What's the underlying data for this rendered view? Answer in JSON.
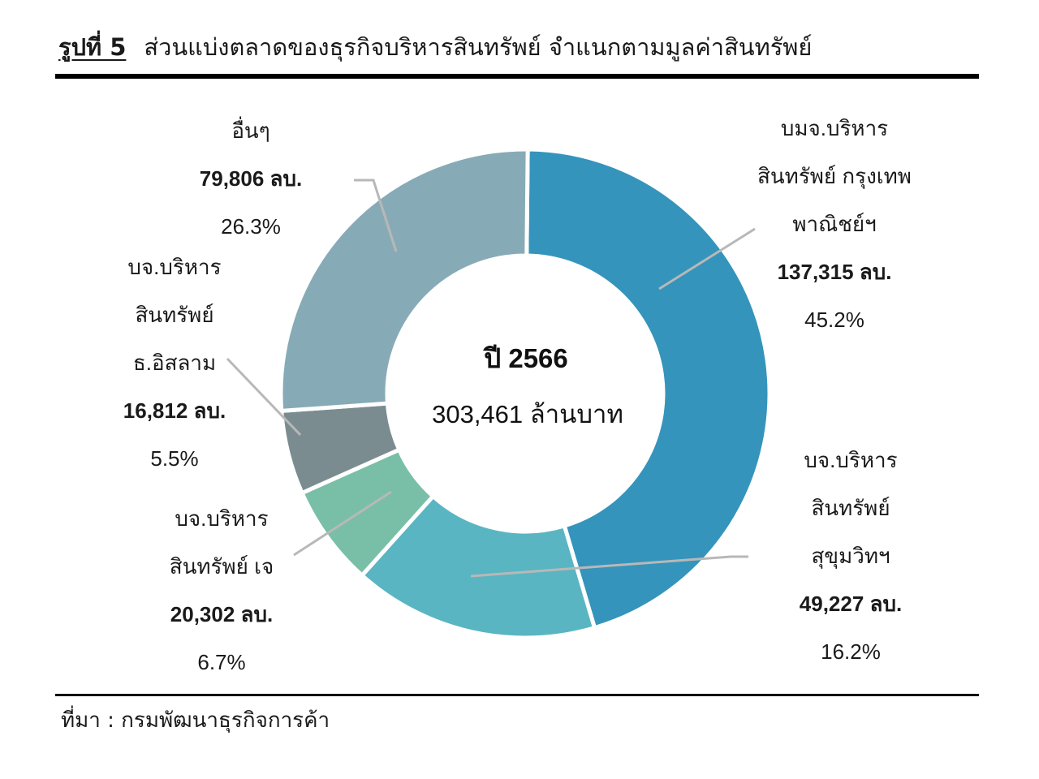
{
  "title": {
    "prefix": "รูปที่ 5",
    "text": "ส่วนแบ่งตลาดของธุรกิจบริหารสินทรัพย์ จำแนกตามมูลค่าสินทรัพย์"
  },
  "center": {
    "year_label": "ปี 2566",
    "total_label": "303,461 ล้านบาท"
  },
  "source": "ที่มา : กรมพัฒนาธุรกิจการค้า",
  "chart_data": {
    "type": "pie",
    "variant": "donut",
    "title": "ส่วนแบ่งตลาดของธุรกิจบริหารสินทรัพย์ จำแนกตามมูลค่าสินทรัพย์",
    "year": "ปี 2566",
    "total": 303461,
    "total_unit": "ล้านบาท",
    "slices": [
      {
        "name_lines": [
          "บมจ.บริหาร",
          "สินทรัพย์ กรุงเทพ",
          "พาณิชย์ฯ"
        ],
        "value": 137315,
        "value_label": "137,315 ลบ.",
        "percent": 45.2,
        "percent_label": "45.2%",
        "color": "#3594bb"
      },
      {
        "name_lines": [
          "บจ.บริหาร",
          "สินทรัพย์",
          "สุขุมวิทฯ"
        ],
        "value": 49227,
        "value_label": "49,227 ลบ.",
        "percent": 16.2,
        "percent_label": "16.2%",
        "color": "#5ab5c2"
      },
      {
        "name_lines": [
          "บจ.บริหาร",
          "สินทรัพย์ เจ"
        ],
        "value": 20302,
        "value_label": "20,302 ลบ.",
        "percent": 6.7,
        "percent_label": "6.7%",
        "color": "#79bfa7"
      },
      {
        "name_lines": [
          "บจ.บริหาร",
          "สินทรัพย์",
          "ธ.อิสลาม"
        ],
        "value": 16812,
        "value_label": "16,812 ลบ.",
        "percent": 5.5,
        "percent_label": "5.5%",
        "color": "#7b8c90"
      },
      {
        "name_lines": [
          "อื่นๆ"
        ],
        "value": 79806,
        "value_label": "79,806 ลบ.",
        "percent": 26.3,
        "percent_label": "26.3%",
        "color": "#87abb6"
      }
    ]
  }
}
